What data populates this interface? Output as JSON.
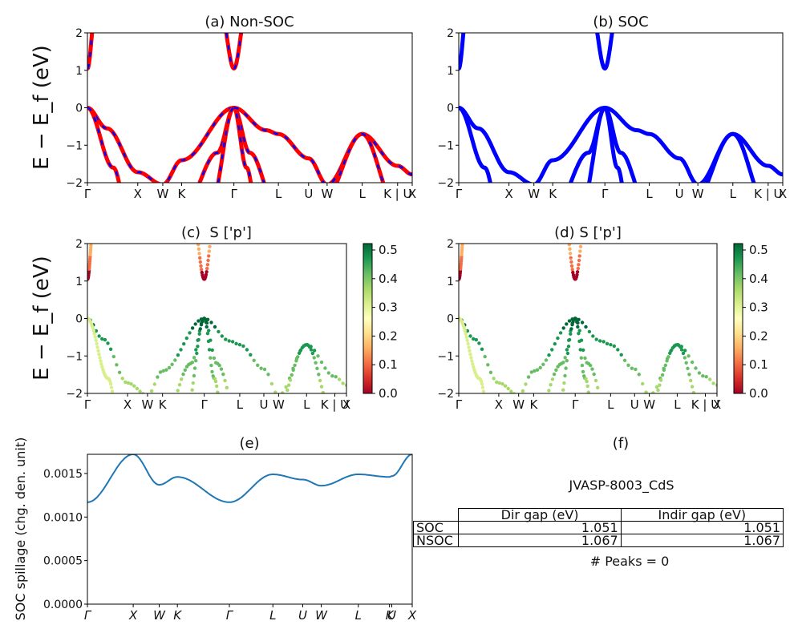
{
  "figure": {
    "panels": {
      "a": {
        "title": "(a) Non-SOC"
      },
      "b": {
        "title": "(b) SOC"
      },
      "c": {
        "title": "(c)  S ['p']"
      },
      "d": {
        "title": "(d) S ['p']"
      },
      "e": {
        "title": "(e)"
      },
      "f": {
        "title": "(f)"
      }
    },
    "ylabel_band": "E − E_f (eV)",
    "ylabel_spillage": "SOC spillage (chg. den. unit)",
    "kpath_labels": [
      "Γ",
      "X",
      "W",
      "K",
      "Γ",
      "L",
      "U",
      "W",
      "L",
      "K | U",
      "X"
    ],
    "kpath_labels_spillage": [
      "Γ",
      "X",
      "W",
      "K",
      "Γ",
      "L",
      "U",
      "W",
      "L",
      "K",
      "U",
      "X"
    ],
    "band_yticks": [
      "2",
      "1",
      "0",
      "−1",
      "−2"
    ],
    "spill_yticks": [
      "0.0015",
      "0.0010",
      "0.0005",
      "0.0000"
    ],
    "colorbar_ticks": [
      "0.5",
      "0.4",
      "0.3",
      "0.2",
      "0.1",
      "0.0"
    ],
    "colors": {
      "nonsoc_line": "#ff0000",
      "nonsoc_dash": "#0000ff",
      "soc_line": "#0000ff",
      "spillage_line": "#1f77b4"
    }
  },
  "table": {
    "title": "JVASP-8003_CdS",
    "headers": [
      "Dir gap (eV)",
      "Indir gap (eV)"
    ],
    "rows": [
      {
        "label": "SOC",
        "dir": "1.051",
        "indir": "1.051"
      },
      {
        "label": "NSOC",
        "dir": "1.067",
        "indir": "1.067"
      }
    ],
    "peaks": "# Peaks = 0"
  },
  "chart_data": [
    {
      "type": "line",
      "panel": "(a) Non-SOC",
      "ylim": [
        -2,
        2
      ],
      "xticks": [
        "Γ",
        "X",
        "W",
        "K",
        "Γ",
        "L",
        "U",
        "W",
        "L",
        "K | U",
        "X"
      ],
      "conduction_band_min": 1.067,
      "valence_band_max": 0.0,
      "series": [
        {
          "x": [
            "Γ",
            "X",
            "W",
            "K",
            "Γ",
            "L",
            "U",
            "W",
            "L",
            "K | U",
            "X"
          ],
          "y": [
            0.0,
            -1.75,
            -2.0,
            -1.4,
            0.0,
            -0.72,
            -1.3,
            -2.0,
            -0.72,
            -1.5,
            -1.78
          ]
        }
      ]
    },
    {
      "type": "line",
      "panel": "(b) SOC",
      "ylim": [
        -2,
        2
      ],
      "xticks": [
        "Γ",
        "X",
        "W",
        "K",
        "Γ",
        "L",
        "U",
        "W",
        "L",
        "K | U",
        "X"
      ],
      "conduction_band_min": 1.051,
      "valence_band_max": 0.0,
      "series": [
        {
          "x": [
            "Γ",
            "X",
            "W",
            "K",
            "Γ",
            "L",
            "U",
            "W",
            "L",
            "K | U",
            "X"
          ],
          "y": [
            0.0,
            -1.75,
            -2.0,
            -1.4,
            0.0,
            -0.72,
            -1.3,
            -2.0,
            -0.72,
            -1.5,
            -1.78
          ]
        }
      ]
    },
    {
      "type": "scatter",
      "panel": "(c)  S ['p']",
      "ylim": [
        -2,
        2
      ],
      "colorbar": [
        0.0,
        0.5
      ],
      "conduction_band_weight": 0.02,
      "valence_band_weight": 0.5
    },
    {
      "type": "scatter",
      "panel": "(d) S ['p']",
      "ylim": [
        -2,
        2
      ],
      "colorbar": [
        0.0,
        0.5
      ],
      "conduction_band_weight": 0.02,
      "valence_band_weight": 0.5
    },
    {
      "type": "line",
      "panel": "(e)",
      "ylabel": "SOC spillage (chg. den. unit)",
      "ylim": [
        0.0,
        0.00172
      ],
      "x": [
        "Γ",
        "X",
        "W",
        "K",
        "Γ",
        "L",
        "U",
        "W",
        "L",
        "K",
        "U",
        "X"
      ],
      "y": [
        0.00117,
        0.00172,
        0.00137,
        0.00146,
        0.00117,
        0.00149,
        0.00143,
        0.00136,
        0.00149,
        0.00146,
        0.00147,
        0.00172
      ]
    }
  ]
}
